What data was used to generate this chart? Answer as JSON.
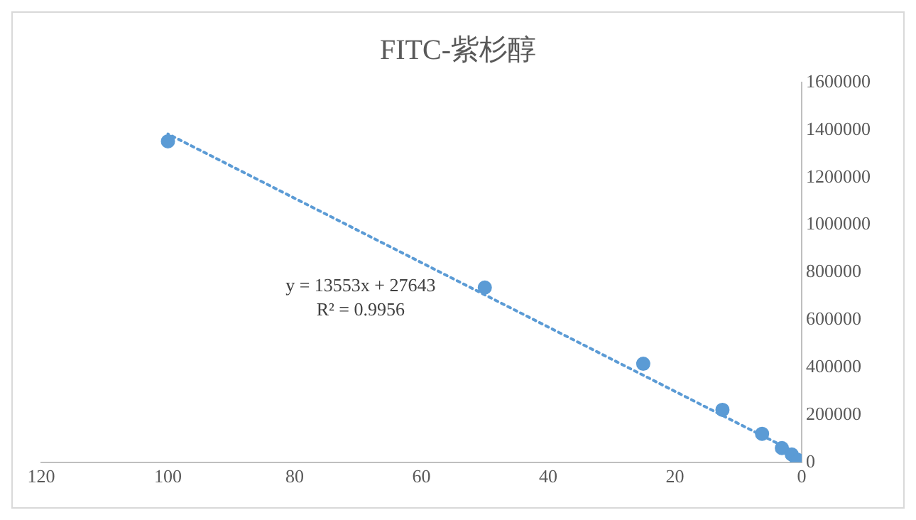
{
  "chart_data": {
    "type": "scatter",
    "title": "FITC-紫杉醇",
    "xlim": [
      120,
      0
    ],
    "xticks": [
      0,
      20,
      40,
      60,
      80,
      100,
      120
    ],
    "ylim": [
      0,
      1600000
    ],
    "yticks": [
      0,
      200000,
      400000,
      600000,
      800000,
      1000000,
      1200000,
      1400000,
      1600000
    ],
    "grid": false,
    "legend": false,
    "marker": "circle",
    "series": [
      {
        "color": "#5b9bd5",
        "x": [
          100,
          50,
          25,
          12.5,
          6.25,
          3.125,
          1.5625,
          0.78
        ],
        "values": [
          1352000,
          736000,
          415000,
          221000,
          120000,
          60000,
          33000,
          7000
        ]
      },
      {
        "type": "line",
        "color": "#5b9bd5",
        "line_style": "dotted",
        "marker": "none",
        "x": [
          0,
          100
        ],
        "values": [
          28000,
          1383000
        ]
      }
    ],
    "annotations": [
      "y = 13553x + 27643",
      "R² = 0.9956"
    ]
  }
}
